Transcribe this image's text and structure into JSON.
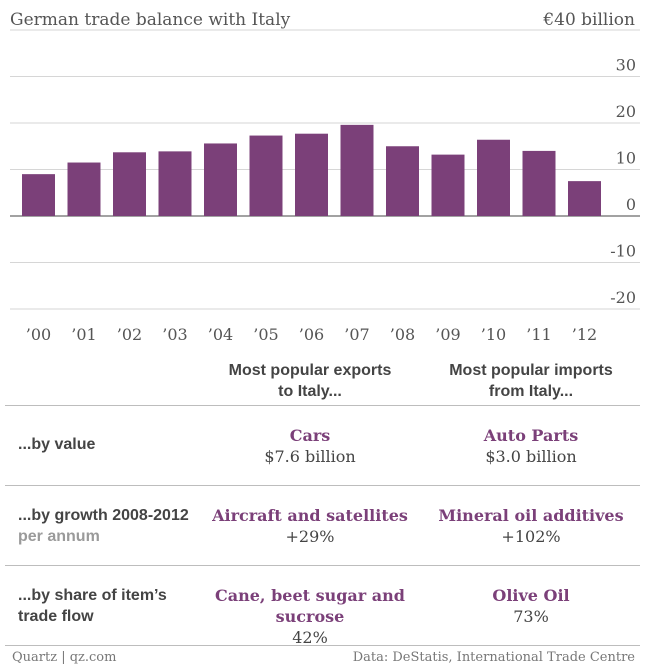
{
  "header": {
    "title": "German trade balance with Italy",
    "unit": "€40 billion"
  },
  "chart_data": {
    "type": "bar",
    "title": "German trade balance with Italy",
    "ylabel": "€ billion",
    "categories": [
      "’00",
      "’01",
      "’02",
      "’03",
      "’04",
      "’05",
      "’06",
      "’07",
      "’08",
      "’09",
      "’10",
      "’11",
      "’12"
    ],
    "values": [
      9,
      11.5,
      13.7,
      13.9,
      15.6,
      17.3,
      17.7,
      19.6,
      15,
      13.2,
      16.4,
      14,
      7.5
    ],
    "ylim": [
      -20,
      40
    ],
    "yticks": [
      "30",
      "20",
      "10",
      "0",
      "-10",
      "-20"
    ],
    "grid": true
  },
  "table": {
    "headers": {
      "exports": [
        "Most popular exports",
        "to Italy..."
      ],
      "imports": [
        "Most popular imports",
        "from Italy..."
      ]
    },
    "rows": [
      {
        "label": "...by value",
        "sublabel": "",
        "export_item": "Cars",
        "export_value": "$7.6 billion",
        "import_item": "Auto Parts",
        "import_value": "$3.0 billion"
      },
      {
        "label": "...by growth 2008-2012",
        "sublabel": "per annum",
        "export_item": "Aircraft and satellites",
        "export_value": "+29%",
        "import_item": "Mineral oil additives",
        "import_value": "+102%"
      },
      {
        "label": "...by share of item’s",
        "sublabel": "trade flow",
        "export_item": "Cane, beet sugar and sucrose",
        "export_value": "42%",
        "import_item": "Olive Oil",
        "import_value": "73%"
      }
    ]
  },
  "footer": {
    "left": "Quartz | qz.com",
    "right": "Data: DeStatis, International Trade Centre"
  },
  "colors": {
    "bar": "#7b4079",
    "accent_text": "#7b4079"
  }
}
